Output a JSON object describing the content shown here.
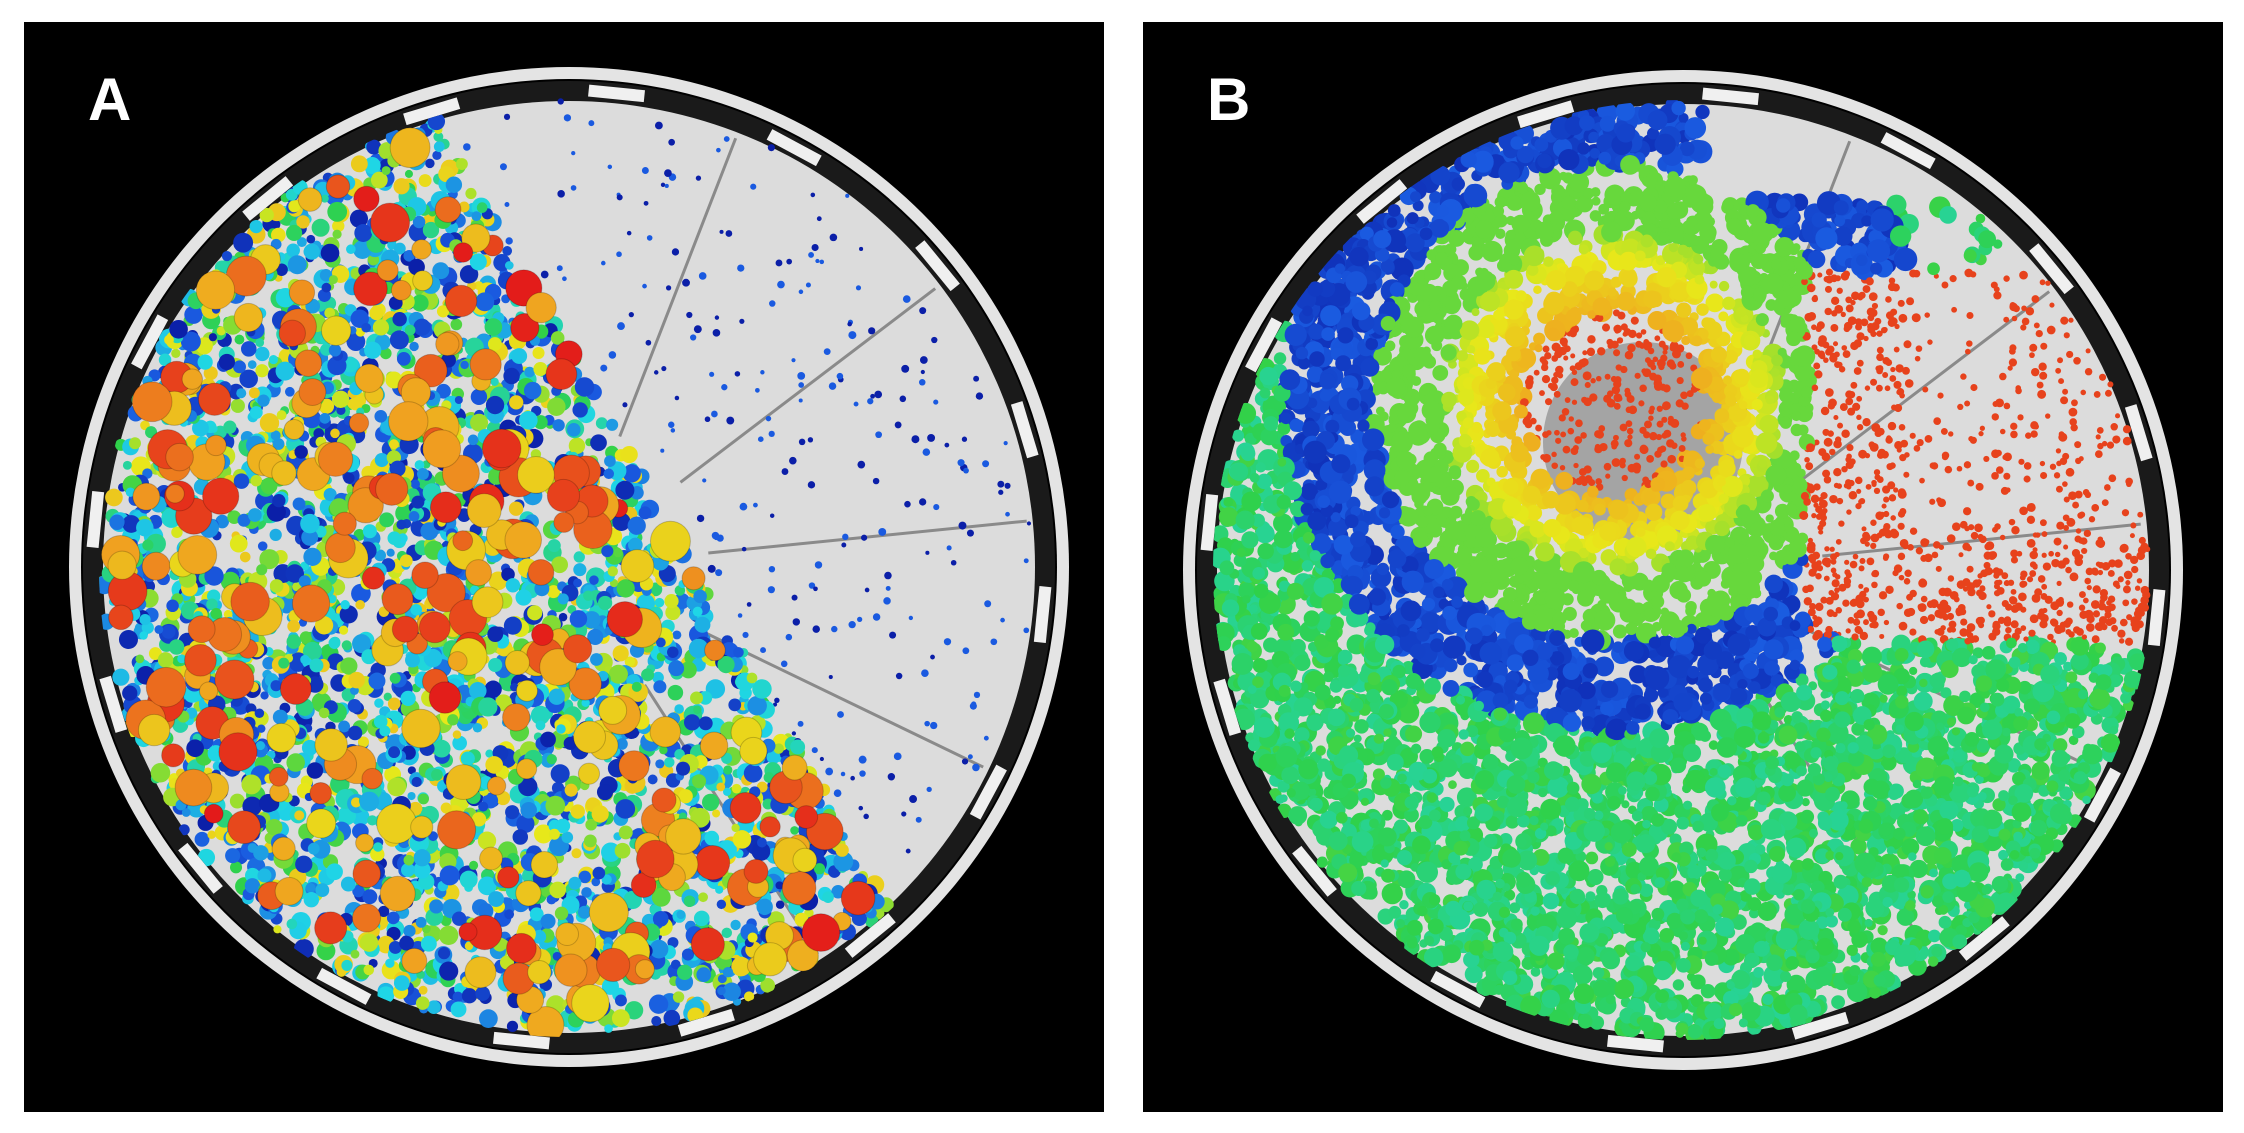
{
  "figure": {
    "background": "#ffffff",
    "panel_background": "#000000",
    "colors": {
      "drum_rim": "#e4e4e4",
      "drum_interior": "#dcdcdc",
      "lifters": "#1a1a1a",
      "lifter_faces": "#f0f0f0",
      "core": "#9a9a9a",
      "particle_scale": [
        "#0b1fa8",
        "#1a5ae0",
        "#1fd6e6",
        "#2fd14a",
        "#e8e81a",
        "#f0a020",
        "#e31a1a"
      ]
    },
    "panels": [
      {
        "id": "A",
        "label": "A",
        "description_icon": "rotating-drum-particle-mixture",
        "pattern": "mixed"
      },
      {
        "id": "B",
        "label": "B",
        "description_icon": "rotating-drum-particle-mixture",
        "pattern": "segregated-bands"
      }
    ]
  }
}
